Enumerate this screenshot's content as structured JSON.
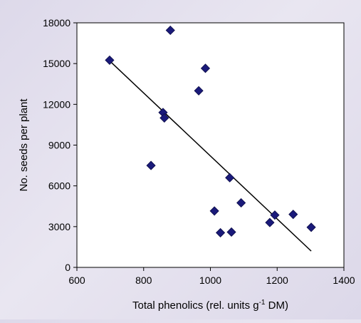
{
  "chart_data": {
    "type": "scatter",
    "title": "",
    "xlabel": "Total phenolics (rel. units g",
    "xlabel_superscript": "-1",
    "xlabel_suffix": " DM)",
    "ylabel": "No. seeds per plant",
    "xlim": [
      600,
      1400
    ],
    "ylim": [
      0,
      18000
    ],
    "x_ticks": [
      "600",
      "800",
      "1000",
      "1200",
      "1400"
    ],
    "y_ticks": [
      "0",
      "3000",
      "6000",
      "9000",
      "12000",
      "15000",
      "18000"
    ],
    "grid": false,
    "marker": "diamond",
    "marker_color": "#1a1a7a",
    "points": [
      {
        "x": 698,
        "y": 15250
      },
      {
        "x": 880,
        "y": 17450
      },
      {
        "x": 985,
        "y": 14650
      },
      {
        "x": 965,
        "y": 13000
      },
      {
        "x": 858,
        "y": 11400
      },
      {
        "x": 862,
        "y": 11000
      },
      {
        "x": 822,
        "y": 7500
      },
      {
        "x": 1058,
        "y": 6600
      },
      {
        "x": 1092,
        "y": 4750
      },
      {
        "x": 1012,
        "y": 4150
      },
      {
        "x": 1030,
        "y": 2550
      },
      {
        "x": 1063,
        "y": 2600
      },
      {
        "x": 1178,
        "y": 3300
      },
      {
        "x": 1193,
        "y": 3850
      },
      {
        "x": 1248,
        "y": 3900
      },
      {
        "x": 1302,
        "y": 2950
      }
    ],
    "trendline": {
      "x": [
        698,
        1302
      ],
      "y": [
        15200,
        1200
      ],
      "color": "#000000"
    }
  }
}
